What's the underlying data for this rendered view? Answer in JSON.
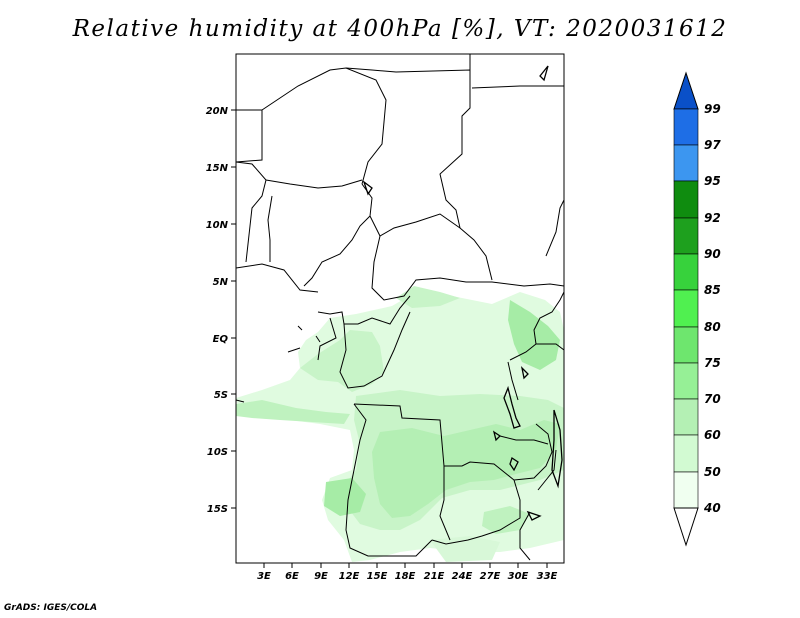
{
  "title": "Relative humidity at 400hPa [%], VT: 2020031612",
  "credit": "GrADS: IGES/COLA",
  "map": {
    "lat_labels": [
      "20N",
      "15N",
      "10N",
      "5N",
      "EQ",
      "5S",
      "10S",
      "15S"
    ],
    "lon_labels": [
      "3E",
      "6E",
      "9E",
      "12E",
      "15E",
      "18E",
      "21E",
      "24E",
      "27E",
      "30E",
      "33E"
    ]
  },
  "colorbar": {
    "labels": [
      "99",
      "97",
      "95",
      "92",
      "90",
      "85",
      "80",
      "75",
      "70",
      "60",
      "50",
      "40"
    ],
    "colors": [
      "#0a50c8",
      "#1e6ee6",
      "#3c96f0",
      "#0f8c0f",
      "#1ea01e",
      "#37d23c",
      "#50f050",
      "#6ee66e",
      "#96f096",
      "#b4f0b4",
      "#d2fad2",
      "#f0fff0"
    ]
  }
}
